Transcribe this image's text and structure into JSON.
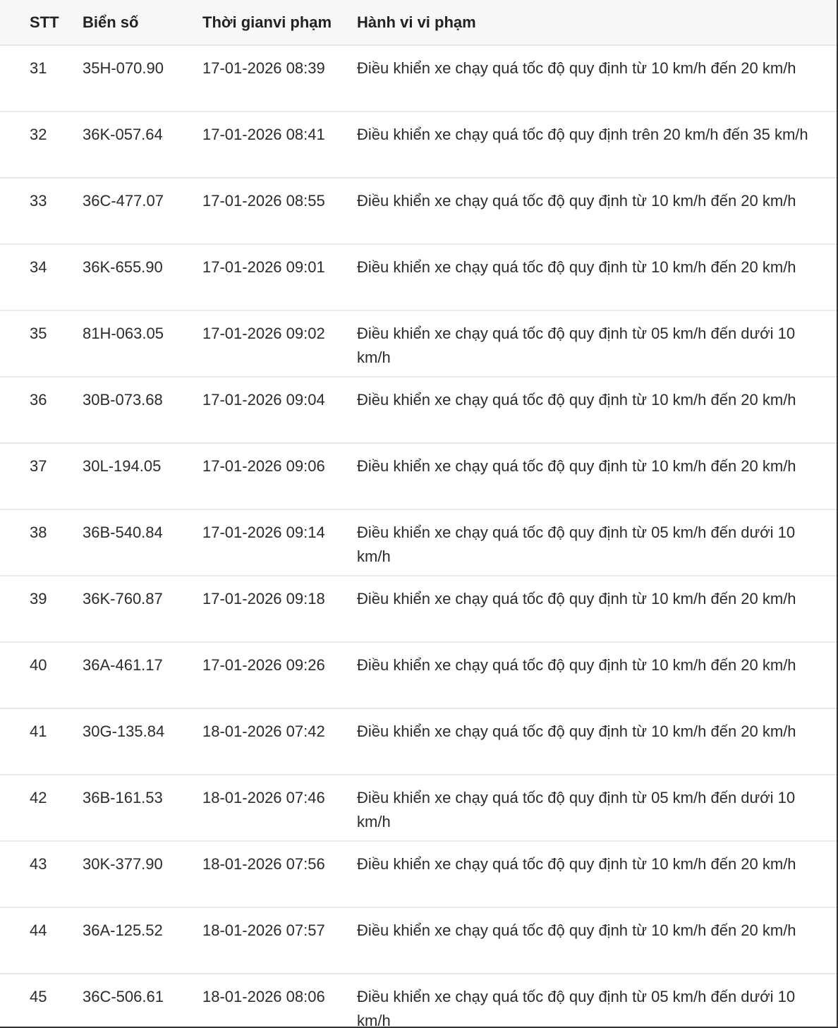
{
  "table": {
    "headers": [
      "STT",
      "Biển số",
      "Thời gianvi phạm",
      "Hành vi vi phạm"
    ],
    "rows": [
      [
        "31",
        "35H-070.90",
        "17-01-2026 08:39",
        "Điều khiển xe chạy quá tốc độ quy định từ 10 km/h đến 20 km/h"
      ],
      [
        "32",
        "36K-057.64",
        "17-01-2026 08:41",
        "Điều khiển xe chạy quá tốc độ quy định trên 20 km/h đến 35 km/h"
      ],
      [
        "33",
        "36C-477.07",
        "17-01-2026 08:55",
        "Điều khiển xe chạy quá tốc độ quy định từ 10 km/h đến 20 km/h"
      ],
      [
        "34",
        "36K-655.90",
        "17-01-2026 09:01",
        "Điều khiển xe chạy quá tốc độ quy định từ 10 km/h đến 20 km/h"
      ],
      [
        "35",
        "81H-063.05",
        "17-01-2026 09:02",
        "Điều khiển xe chạy quá tốc độ quy định từ 05 km/h đến dưới 10 km/h"
      ],
      [
        "36",
        "30B-073.68",
        "17-01-2026 09:04",
        "Điều khiển xe chạy quá tốc độ quy định từ 10 km/h đến 20 km/h"
      ],
      [
        "37",
        "30L-194.05",
        "17-01-2026 09:06",
        "Điều khiển xe chạy quá tốc độ quy định từ 10 km/h đến 20 km/h"
      ],
      [
        "38",
        "36B-540.84",
        "17-01-2026 09:14",
        "Điều khiển xe chạy quá tốc độ quy định từ 05 km/h đến dưới 10 km/h"
      ],
      [
        "39",
        "36K-760.87",
        "17-01-2026 09:18",
        "Điều khiển xe chạy quá tốc độ quy định từ 10 km/h đến 20 km/h"
      ],
      [
        "40",
        "36A-461.17",
        "17-01-2026 09:26",
        "Điều khiển xe chạy quá tốc độ quy định từ 10 km/h đến 20 km/h"
      ],
      [
        "41",
        "30G-135.84",
        "18-01-2026 07:42",
        "Điều khiển xe chạy quá tốc độ quy định từ 10 km/h đến 20 km/h"
      ],
      [
        "42",
        "36B-161.53",
        "18-01-2026 07:46",
        "Điều khiển xe chạy quá tốc độ quy định từ 05 km/h đến dưới 10 km/h"
      ],
      [
        "43",
        "30K-377.90",
        "18-01-2026 07:56",
        "Điều khiển xe chạy quá tốc độ quy định từ 10 km/h đến 20 km/h"
      ],
      [
        "44",
        "36A-125.52",
        "18-01-2026 07:57",
        "Điều khiển xe chạy quá tốc độ quy định từ 10 km/h đến 20 km/h"
      ],
      [
        "45",
        "36C-506.61",
        "18-01-2026 08:06",
        "Điều khiển xe chạy quá tốc độ quy định từ 05 km/h đến dưới 10 km/h"
      ]
    ]
  }
}
